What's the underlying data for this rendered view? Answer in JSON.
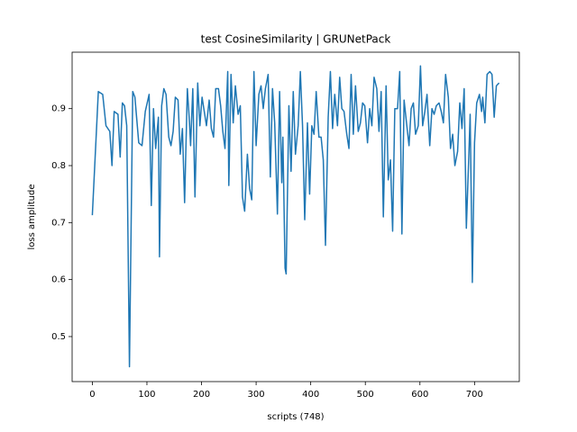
{
  "chart_data": {
    "type": "line",
    "title": "test CosineSimilarity | GRUNetPack",
    "x_label": "scripts (748)",
    "y_label": "loss amplitude",
    "color": "#1f77b4",
    "x": [
      0,
      11,
      19,
      25,
      32,
      36,
      40,
      47,
      51,
      55,
      59,
      63,
      68,
      74,
      78,
      85,
      91,
      97,
      104,
      108,
      112,
      116,
      121,
      123,
      127,
      131,
      135,
      140,
      144,
      148,
      152,
      157,
      161,
      165,
      169,
      174,
      178,
      180,
      184,
      188,
      193,
      197,
      201,
      205,
      209,
      214,
      218,
      222,
      226,
      231,
      235,
      239,
      243,
      248,
      250,
      254,
      258,
      262,
      267,
      271,
      275,
      279,
      284,
      288,
      292,
      296,
      300,
      305,
      309,
      313,
      317,
      322,
      326,
      330,
      334,
      339,
      343,
      347,
      349,
      353,
      355,
      360,
      364,
      368,
      372,
      377,
      381,
      385,
      389,
      394,
      398,
      402,
      406,
      410,
      415,
      419,
      423,
      427,
      432,
      436,
      440,
      444,
      449,
      453,
      457,
      461,
      466,
      470,
      474,
      478,
      482,
      487,
      491,
      495,
      499,
      504,
      508,
      512,
      516,
      521,
      525,
      529,
      533,
      538,
      542,
      546,
      550,
      554,
      559,
      563,
      567,
      571,
      576,
      580,
      584,
      588,
      592,
      597,
      601,
      605,
      609,
      613,
      618,
      622,
      626,
      630,
      635,
      639,
      643,
      647,
      652,
      656,
      660,
      664,
      669,
      673,
      677,
      681,
      685,
      690,
      692,
      696,
      700,
      704,
      709,
      713,
      715,
      719,
      723,
      728,
      732,
      736,
      740,
      745
    ],
    "values": [
      0.713,
      0.93,
      0.925,
      0.87,
      0.86,
      0.8,
      0.895,
      0.89,
      0.815,
      0.91,
      0.905,
      0.87,
      0.447,
      0.93,
      0.92,
      0.84,
      0.835,
      0.895,
      0.925,
      0.73,
      0.9,
      0.83,
      0.885,
      0.64,
      0.905,
      0.935,
      0.925,
      0.85,
      0.835,
      0.86,
      0.92,
      0.915,
      0.82,
      0.865,
      0.735,
      0.935,
      0.875,
      0.835,
      0.935,
      0.745,
      0.945,
      0.87,
      0.92,
      0.895,
      0.87,
      0.915,
      0.865,
      0.85,
      0.935,
      0.935,
      0.905,
      0.86,
      0.83,
      0.965,
      0.765,
      0.96,
      0.875,
      0.94,
      0.89,
      0.905,
      0.745,
      0.72,
      0.82,
      0.76,
      0.74,
      0.965,
      0.835,
      0.925,
      0.94,
      0.9,
      0.935,
      0.96,
      0.78,
      0.935,
      0.875,
      0.715,
      0.93,
      0.77,
      0.85,
      0.62,
      0.61,
      0.905,
      0.79,
      0.93,
      0.82,
      0.87,
      0.965,
      0.87,
      0.705,
      0.875,
      0.75,
      0.87,
      0.855,
      0.93,
      0.85,
      0.85,
      0.81,
      0.66,
      0.885,
      0.965,
      0.865,
      0.925,
      0.87,
      0.955,
      0.9,
      0.895,
      0.855,
      0.83,
      0.96,
      0.855,
      0.94,
      0.86,
      0.875,
      0.91,
      0.905,
      0.84,
      0.9,
      0.87,
      0.955,
      0.935,
      0.86,
      0.93,
      0.71,
      0.94,
      0.775,
      0.81,
      0.685,
      0.9,
      0.9,
      0.965,
      0.68,
      0.915,
      0.87,
      0.835,
      0.9,
      0.91,
      0.855,
      0.87,
      0.975,
      0.87,
      0.895,
      0.925,
      0.835,
      0.9,
      0.89,
      0.905,
      0.91,
      0.895,
      0.875,
      0.96,
      0.92,
      0.83,
      0.855,
      0.8,
      0.825,
      0.91,
      0.865,
      0.935,
      0.69,
      0.83,
      0.89,
      0.595,
      0.84,
      0.91,
      0.925,
      0.895,
      0.92,
      0.875,
      0.96,
      0.965,
      0.96,
      0.885,
      0.94,
      0.945
    ],
    "xlim": [
      -37,
      782
    ],
    "ylim": [
      0.421,
      0.999
    ],
    "xticks": [
      0,
      100,
      200,
      300,
      400,
      500,
      600,
      700
    ],
    "yticks": [
      0.5,
      0.6,
      0.7,
      0.8,
      0.9
    ]
  }
}
